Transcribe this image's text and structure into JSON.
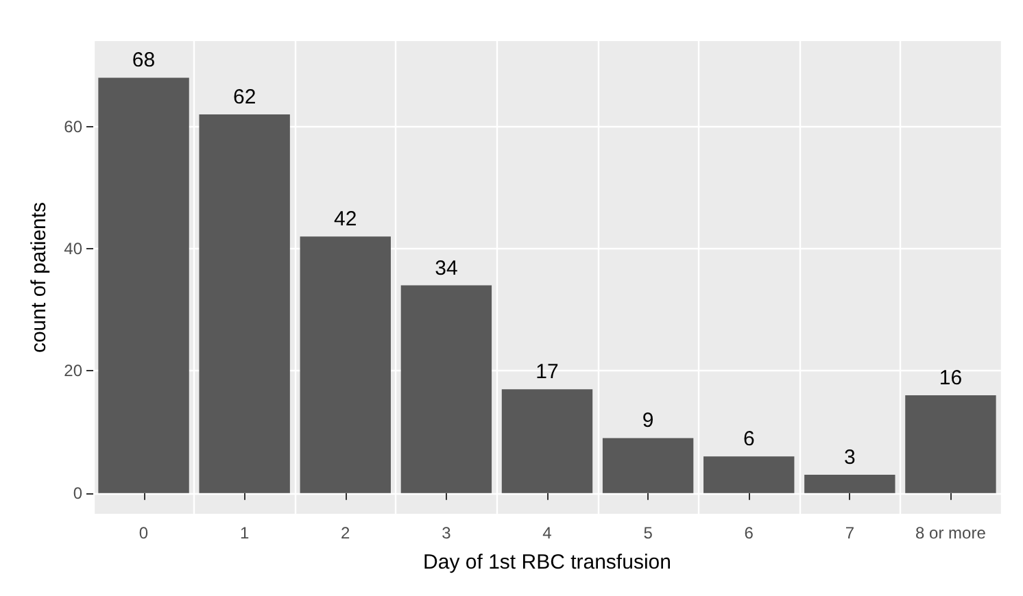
{
  "chart_data": {
    "type": "bar",
    "xlabel": "Day of 1st RBC transfusion",
    "ylabel": "count of patients",
    "categories": [
      "0",
      "1",
      "2",
      "3",
      "4",
      "5",
      "6",
      "7",
      "8 or more"
    ],
    "values": [
      68,
      62,
      42,
      34,
      17,
      9,
      6,
      3,
      16
    ],
    "color": "#595959",
    "ylim": [
      -3.4,
      74
    ],
    "yticks": [
      0,
      20,
      40,
      60
    ],
    "grid": true,
    "data_labels": true
  }
}
